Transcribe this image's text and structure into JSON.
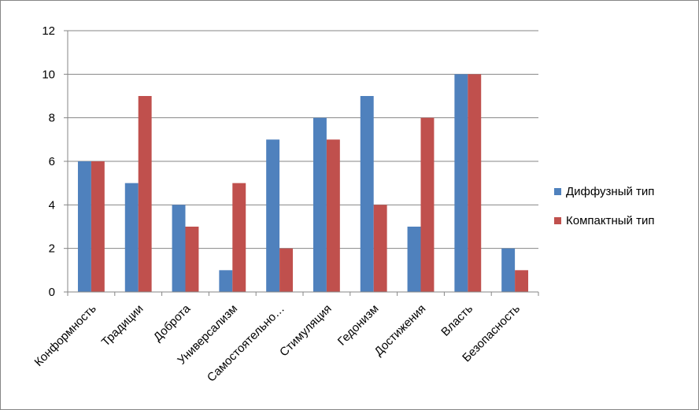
{
  "chart_data": {
    "type": "bar",
    "title": "",
    "xlabel": "",
    "ylabel": "",
    "categories": [
      "Конформность",
      "Традиции",
      "Доброта",
      "Универсализм",
      "Самостоятельно…",
      "Стимуляция",
      "Гедонизм",
      "Достижения",
      "Власть",
      "Безопасность"
    ],
    "series": [
      {
        "name": "Диффузный тип",
        "color": "#4F81BD",
        "values": [
          6,
          5,
          4,
          1,
          7,
          8,
          9,
          3,
          10,
          2
        ]
      },
      {
        "name": "Компактный тип",
        "color": "#C0504D",
        "values": [
          6,
          9,
          3,
          5,
          2,
          7,
          4,
          8,
          10,
          1
        ]
      }
    ],
    "ylim": [
      0,
      12
    ],
    "yticks": [
      0,
      2,
      4,
      6,
      8,
      10,
      12
    ],
    "grid": true,
    "legend_position": "right"
  }
}
